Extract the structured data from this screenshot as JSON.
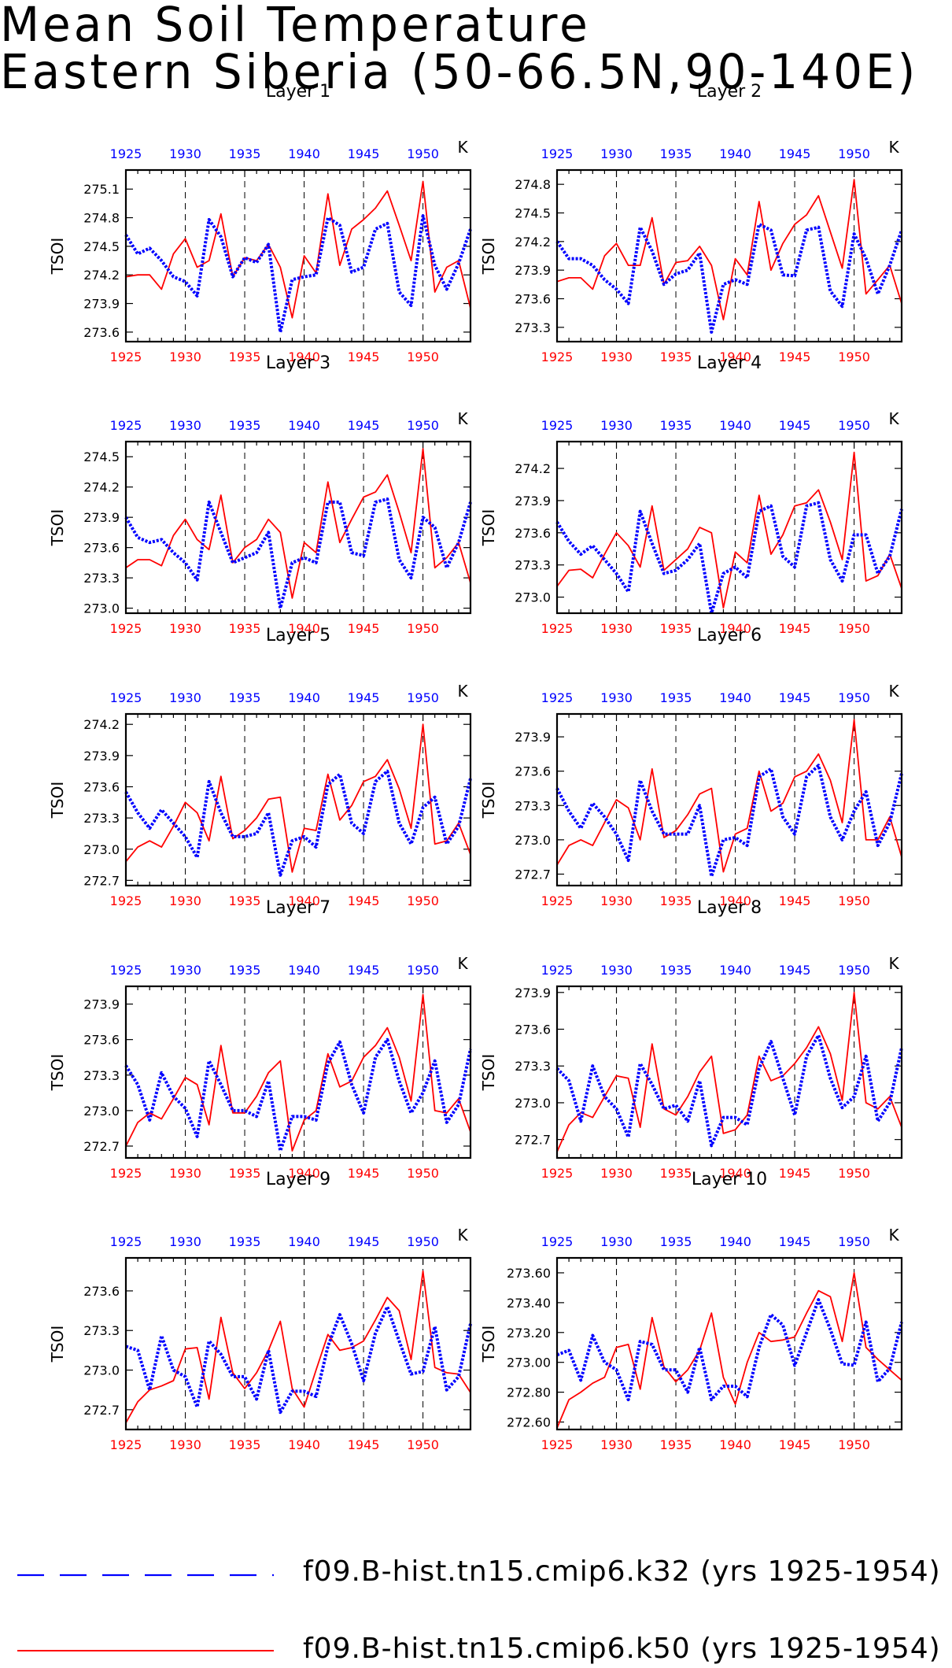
{
  "title": {
    "line1": "Mean Soil Temperature",
    "line2": "Eastern Siberia (50-66.5N,90-140E)"
  },
  "colors": {
    "k32": "#0000ff",
    "k50": "#ff0000"
  },
  "legend": [
    {
      "label": "f09.B-hist.tn15.cmip6.k32 (yrs 1925-1954)",
      "color": "#0000ff",
      "style": "dashed-dotted"
    },
    {
      "label": "f09.B-hist.tn15.cmip6.k50 (yrs 1925-1954)",
      "color": "#ff0000",
      "style": "solid"
    }
  ],
  "chart_data": [
    {
      "type": "line",
      "title": "Layer 1",
      "ylabel": "TSOI",
      "unit": "K",
      "xlim": [
        1925,
        1954
      ],
      "xticks": [
        1925,
        1930,
        1935,
        1940,
        1945,
        1950
      ],
      "ylim": [
        273.5,
        275.3
      ],
      "yticks": [
        "273.6",
        "273.9",
        "274.2",
        "274.5",
        "274.8",
        "275.1"
      ],
      "series": [
        {
          "name": "f09.B-hist.tn15.cmip6.k32",
          "color": "#0000ff",
          "values": [
            274.62,
            274.42,
            274.48,
            274.35,
            274.18,
            274.13,
            273.98,
            274.78,
            274.6,
            274.18,
            274.38,
            274.33,
            274.52,
            273.6,
            274.15,
            274.18,
            274.2,
            274.8,
            274.72,
            274.23,
            274.28,
            274.68,
            274.74,
            274.02,
            273.88,
            274.82,
            274.3,
            274.05,
            274.32,
            274.68
          ]
        },
        {
          "name": "f09.B-hist.tn15.cmip6.k50",
          "color": "#ff0000",
          "values": [
            274.18,
            274.2,
            274.2,
            274.05,
            274.42,
            274.58,
            274.28,
            274.35,
            274.84,
            274.18,
            274.38,
            274.35,
            274.52,
            274.28,
            273.75,
            274.4,
            274.22,
            275.05,
            274.3,
            274.68,
            274.78,
            274.9,
            275.08,
            274.72,
            274.35,
            275.18,
            274.02,
            274.28,
            274.35,
            273.85
          ]
        }
      ]
    },
    {
      "type": "line",
      "title": "Layer 2",
      "ylabel": "TSOI",
      "unit": "K",
      "xlim": [
        1925,
        1954
      ],
      "xticks": [
        1925,
        1930,
        1935,
        1940,
        1945,
        1950
      ],
      "ylim": [
        273.15,
        274.95
      ],
      "yticks": [
        "273.3",
        "273.6",
        "273.9",
        "274.2",
        "274.5",
        "274.8"
      ],
      "series": [
        {
          "name": "f09.B-hist.tn15.cmip6.k32",
          "color": "#0000ff",
          "values": [
            274.2,
            274.02,
            274.02,
            273.95,
            273.8,
            273.7,
            273.55,
            274.35,
            274.1,
            273.75,
            273.86,
            273.9,
            274.08,
            273.25,
            273.75,
            273.8,
            273.75,
            274.38,
            274.32,
            273.85,
            273.84,
            274.32,
            274.35,
            273.68,
            273.52,
            274.28,
            274.02,
            273.65,
            273.95,
            274.32
          ]
        },
        {
          "name": "f09.B-hist.tn15.cmip6.k50",
          "color": "#ff0000",
          "values": [
            273.78,
            273.82,
            273.82,
            273.7,
            274.05,
            274.18,
            273.95,
            273.95,
            274.45,
            273.75,
            273.98,
            274,
            274.15,
            273.95,
            273.38,
            274.02,
            273.85,
            274.62,
            273.9,
            274.18,
            274.38,
            274.48,
            274.68,
            274.3,
            273.92,
            274.85,
            273.65,
            273.8,
            273.95,
            273.55
          ]
        }
      ]
    },
    {
      "type": "line",
      "title": "Layer 3",
      "ylabel": "TSOI",
      "unit": "K",
      "xlim": [
        1925,
        1954
      ],
      "xticks": [
        1925,
        1930,
        1935,
        1940,
        1945,
        1950
      ],
      "ylim": [
        272.95,
        274.65
      ],
      "yticks": [
        "273.0",
        "273.3",
        "273.6",
        "273.9",
        "274.2",
        "274.5"
      ],
      "series": [
        {
          "name": "f09.B-hist.tn15.cmip6.k32",
          "color": "#0000ff",
          "values": [
            273.9,
            273.7,
            273.65,
            273.68,
            273.55,
            273.45,
            273.28,
            274.05,
            273.75,
            273.45,
            273.5,
            273.55,
            273.75,
            273.0,
            273.45,
            273.5,
            273.45,
            274.05,
            274.05,
            273.55,
            273.52,
            274.05,
            274.08,
            273.48,
            273.3,
            273.9,
            273.8,
            273.4,
            273.65,
            274.05
          ]
        },
        {
          "name": "f09.B-hist.tn15.cmip6.k50",
          "color": "#ff0000",
          "values": [
            273.4,
            273.48,
            273.48,
            273.42,
            273.72,
            273.88,
            273.68,
            273.58,
            274.12,
            273.45,
            273.6,
            273.68,
            273.88,
            273.75,
            273.1,
            273.65,
            273.55,
            274.25,
            273.65,
            273.88,
            274.1,
            274.15,
            274.32,
            273.95,
            273.55,
            274.58,
            273.4,
            273.5,
            273.65,
            273.25
          ]
        }
      ]
    },
    {
      "type": "line",
      "title": "Layer 4",
      "ylabel": "TSOI",
      "unit": "K",
      "xlim": [
        1925,
        1954
      ],
      "xticks": [
        1925,
        1930,
        1935,
        1940,
        1945,
        1950
      ],
      "ylim": [
        272.85,
        274.45
      ],
      "yticks": [
        "273.0",
        "273.3",
        "273.6",
        "273.9",
        "274.2"
      ],
      "series": [
        {
          "name": "f09.B-hist.tn15.cmip6.k32",
          "color": "#0000ff",
          "values": [
            273.7,
            273.52,
            273.4,
            273.48,
            273.35,
            273.22,
            273.05,
            273.8,
            273.5,
            273.22,
            273.25,
            273.35,
            273.5,
            272.85,
            273.22,
            273.28,
            273.18,
            273.8,
            273.85,
            273.38,
            273.28,
            273.85,
            273.88,
            273.35,
            273.15,
            273.58,
            273.58,
            273.22,
            273.38,
            273.82
          ]
        },
        {
          "name": "f09.B-hist.tn15.cmip6.k50",
          "color": "#ff0000",
          "values": [
            273.1,
            273.25,
            273.26,
            273.18,
            273.4,
            273.6,
            273.48,
            273.28,
            273.85,
            273.25,
            273.35,
            273.45,
            273.65,
            273.6,
            272.9,
            273.42,
            273.32,
            273.95,
            273.4,
            273.58,
            273.85,
            273.88,
            274.0,
            273.7,
            273.35,
            274.35,
            273.15,
            273.2,
            273.4,
            273.08
          ]
        }
      ]
    },
    {
      "type": "line",
      "title": "Layer 5",
      "ylabel": "TSOI",
      "unit": "K",
      "xlim": [
        1925,
        1954
      ],
      "xticks": [
        1925,
        1930,
        1935,
        1940,
        1945,
        1950
      ],
      "ylim": [
        272.65,
        274.3
      ],
      "yticks": [
        "272.7",
        "273.0",
        "273.3",
        "273.6",
        "273.9",
        "274.2"
      ],
      "series": [
        {
          "name": "f09.B-hist.tn15.cmip6.k32",
          "color": "#0000ff",
          "values": [
            273.55,
            273.35,
            273.2,
            273.38,
            273.25,
            273.12,
            272.92,
            273.65,
            273.35,
            273.12,
            273.12,
            273.15,
            273.35,
            272.75,
            273.08,
            273.12,
            273.02,
            273.62,
            273.72,
            273.25,
            273.15,
            273.65,
            273.75,
            273.25,
            273.05,
            273.4,
            273.5,
            273.05,
            273.22,
            273.68
          ]
        },
        {
          "name": "f09.B-hist.tn15.cmip6.k50",
          "color": "#ff0000",
          "values": [
            272.88,
            273.02,
            273.08,
            273.02,
            273.22,
            273.45,
            273.35,
            273.08,
            273.7,
            273.1,
            273.18,
            273.3,
            273.48,
            273.5,
            272.78,
            273.2,
            273.18,
            273.72,
            273.28,
            273.42,
            273.65,
            273.7,
            273.86,
            273.58,
            273.2,
            274.2,
            273.05,
            273.08,
            273.25,
            272.95
          ]
        }
      ]
    },
    {
      "type": "line",
      "title": "Layer 6",
      "ylabel": "TSOI",
      "unit": "K",
      "xlim": [
        1925,
        1954
      ],
      "xticks": [
        1925,
        1930,
        1935,
        1940,
        1945,
        1950
      ],
      "ylim": [
        272.6,
        274.1
      ],
      "yticks": [
        "272.7",
        "273.0",
        "273.3",
        "273.6",
        "273.9"
      ],
      "series": [
        {
          "name": "f09.B-hist.tn15.cmip6.k32",
          "color": "#0000ff",
          "values": [
            273.45,
            273.25,
            273.1,
            273.32,
            273.2,
            273.05,
            272.82,
            273.52,
            273.25,
            273.05,
            273.05,
            273.05,
            273.3,
            272.68,
            273.0,
            273.02,
            272.95,
            273.55,
            273.62,
            273.2,
            273.05,
            273.55,
            273.65,
            273.2,
            273.0,
            273.25,
            273.42,
            272.95,
            273.15,
            273.58
          ]
        },
        {
          "name": "f09.B-hist.tn15.cmip6.k50",
          "color": "#ff0000",
          "values": [
            272.78,
            272.95,
            273.0,
            272.95,
            273.15,
            273.35,
            273.28,
            273.0,
            273.62,
            273.02,
            273.08,
            273.22,
            273.4,
            273.45,
            272.72,
            273.05,
            273.1,
            273.6,
            273.25,
            273.32,
            273.55,
            273.6,
            273.75,
            273.52,
            273.15,
            274.05,
            273.0,
            273.0,
            273.2,
            272.85
          ]
        }
      ]
    },
    {
      "type": "line",
      "title": "Layer 7",
      "ylabel": "TSOI",
      "unit": "K",
      "xlim": [
        1925,
        1954
      ],
      "xticks": [
        1925,
        1930,
        1935,
        1940,
        1945,
        1950
      ],
      "ylim": [
        272.6,
        274.05
      ],
      "yticks": [
        "272.7",
        "273.0",
        "273.3",
        "273.6",
        "273.9"
      ],
      "series": [
        {
          "name": "f09.B-hist.tn15.cmip6.k32",
          "color": "#0000ff",
          "values": [
            273.38,
            273.22,
            272.92,
            273.32,
            273.12,
            273.02,
            272.78,
            273.42,
            273.22,
            273.0,
            273.0,
            272.95,
            273.25,
            272.66,
            272.95,
            272.95,
            272.92,
            273.4,
            273.58,
            273.22,
            272.98,
            273.45,
            273.6,
            273.25,
            272.98,
            273.15,
            273.42,
            272.9,
            273.05,
            273.52
          ]
        },
        {
          "name": "f09.B-hist.tn15.cmip6.k50",
          "color": "#ff0000",
          "values": [
            272.7,
            272.9,
            272.98,
            272.93,
            273.1,
            273.28,
            273.22,
            272.88,
            273.55,
            272.98,
            272.98,
            273.12,
            273.32,
            273.42,
            272.66,
            272.92,
            273.0,
            273.48,
            273.2,
            273.25,
            273.45,
            273.55,
            273.7,
            273.45,
            273.08,
            273.98,
            273.0,
            272.98,
            273.1,
            272.82
          ]
        }
      ]
    },
    {
      "type": "line",
      "title": "Layer 8",
      "ylabel": "TSOI",
      "unit": "K",
      "xlim": [
        1925,
        1954
      ],
      "xticks": [
        1925,
        1930,
        1935,
        1940,
        1945,
        1950
      ],
      "ylim": [
        272.55,
        273.95
      ],
      "yticks": [
        "272.7",
        "273.0",
        "273.3",
        "273.6",
        "273.9"
      ],
      "series": [
        {
          "name": "f09.B-hist.tn15.cmip6.k32",
          "color": "#0000ff",
          "values": [
            273.28,
            273.18,
            272.85,
            273.3,
            273.05,
            272.95,
            272.72,
            273.32,
            273.15,
            272.95,
            272.98,
            272.85,
            273.18,
            272.65,
            272.88,
            272.88,
            272.82,
            273.28,
            273.5,
            273.2,
            272.9,
            273.38,
            273.55,
            273.2,
            272.96,
            273.05,
            273.38,
            272.85,
            273.0,
            273.45
          ]
        },
        {
          "name": "f09.B-hist.tn15.cmip6.k50",
          "color": "#ff0000",
          "values": [
            272.6,
            272.82,
            272.92,
            272.88,
            273.05,
            273.22,
            273.2,
            272.8,
            273.48,
            272.95,
            272.9,
            273.05,
            273.25,
            273.38,
            272.75,
            272.78,
            272.9,
            273.38,
            273.18,
            273.22,
            273.32,
            273.45,
            273.62,
            273.4,
            273.02,
            273.9,
            273.0,
            272.95,
            273.05,
            272.8
          ]
        }
      ]
    },
    {
      "type": "line",
      "title": "Layer 9",
      "ylabel": "TSOI",
      "unit": "K",
      "xlim": [
        1925,
        1954
      ],
      "xticks": [
        1925,
        1930,
        1935,
        1940,
        1945,
        1950
      ],
      "ylim": [
        272.55,
        273.85
      ],
      "yticks": [
        "272.7",
        "273.0",
        "273.3",
        "273.6"
      ],
      "series": [
        {
          "name": "f09.B-hist.tn15.cmip6.k32",
          "color": "#0000ff",
          "values": [
            273.18,
            273.15,
            272.85,
            273.26,
            273.0,
            272.95,
            272.72,
            273.22,
            273.12,
            272.95,
            272.95,
            272.78,
            273.15,
            272.68,
            272.84,
            272.84,
            272.8,
            273.18,
            273.42,
            273.2,
            272.92,
            273.28,
            273.48,
            273.22,
            272.97,
            272.99,
            273.33,
            272.85,
            272.95,
            273.35
          ]
        },
        {
          "name": "f09.B-hist.tn15.cmip6.k50",
          "color": "#ff0000",
          "values": [
            272.6,
            272.76,
            272.85,
            272.88,
            272.92,
            273.16,
            273.17,
            272.78,
            273.4,
            272.98,
            272.86,
            272.98,
            273.15,
            273.37,
            272.86,
            272.72,
            273.0,
            273.27,
            273.15,
            273.17,
            273.22,
            273.38,
            273.55,
            273.45,
            273.08,
            273.75,
            273.02,
            272.98,
            272.97,
            272.83
          ]
        }
      ]
    },
    {
      "type": "line",
      "title": "Layer 10",
      "ylabel": "TSOI",
      "unit": "K",
      "xlim": [
        1925,
        1954
      ],
      "xticks": [
        1925,
        1930,
        1935,
        1940,
        1945,
        1950
      ],
      "ylim": [
        272.55,
        273.7
      ],
      "yticks": [
        "272.60",
        "272.80",
        "273.00",
        "273.20",
        "273.40",
        "273.60"
      ],
      "series": [
        {
          "name": "f09.B-hist.tn15.cmip6.k32",
          "color": "#0000ff",
          "values": [
            273.05,
            273.08,
            272.88,
            273.18,
            273.0,
            272.95,
            272.75,
            273.14,
            273.12,
            272.95,
            272.95,
            272.8,
            273.1,
            272.75,
            272.84,
            272.84,
            272.77,
            273.1,
            273.32,
            273.25,
            272.98,
            273.2,
            273.42,
            273.22,
            272.99,
            272.98,
            273.27,
            272.87,
            272.96,
            273.27
          ]
        },
        {
          "name": "f09.B-hist.tn15.cmip6.k50",
          "color": "#ff0000",
          "values": [
            272.56,
            272.75,
            272.8,
            272.86,
            272.9,
            273.1,
            273.12,
            272.82,
            273.3,
            272.97,
            272.87,
            272.95,
            273.08,
            273.33,
            272.9,
            272.72,
            273.0,
            273.2,
            273.14,
            273.15,
            273.17,
            273.33,
            273.48,
            273.44,
            273.14,
            273.6,
            273.1,
            273.02,
            272.95,
            272.88
          ]
        }
      ]
    }
  ]
}
